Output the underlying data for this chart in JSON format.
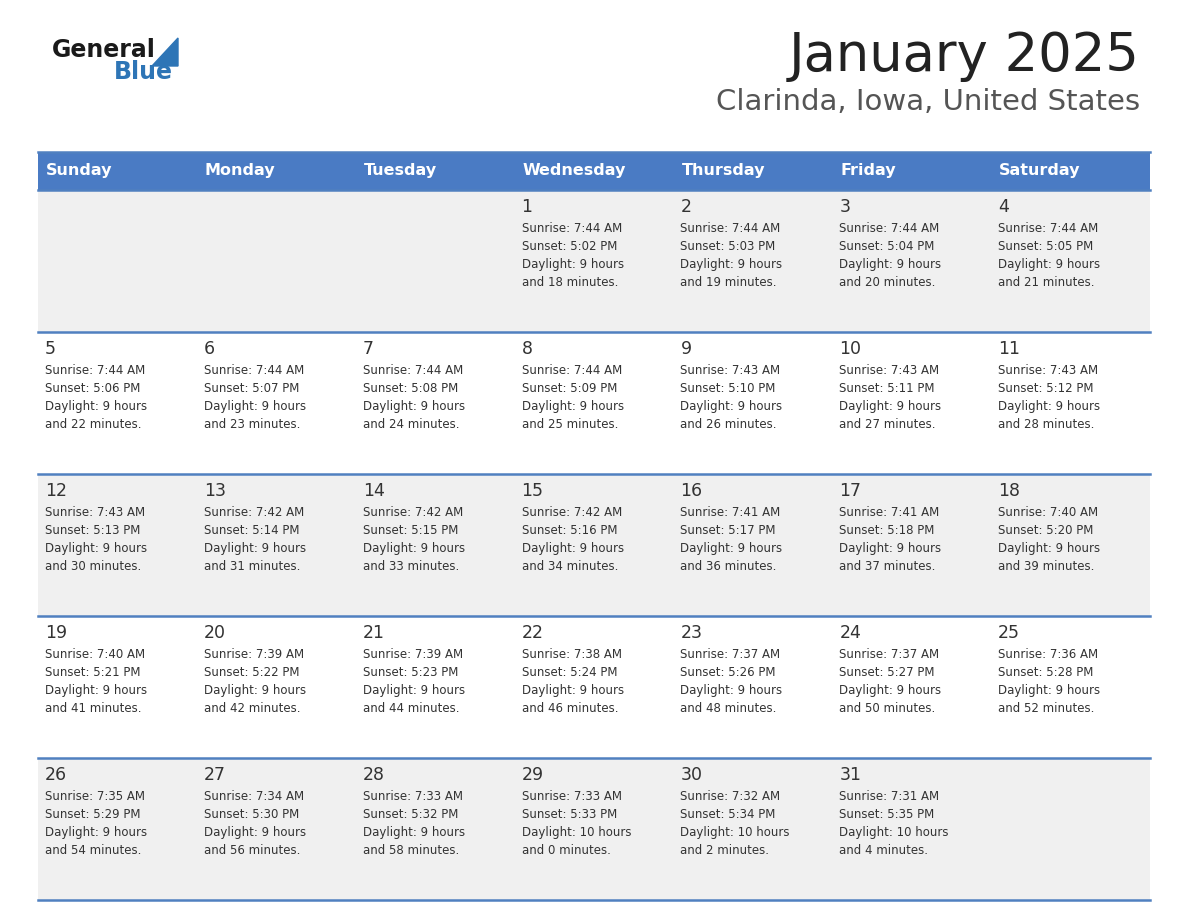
{
  "title": "January 2025",
  "subtitle": "Clarinda, Iowa, United States",
  "days_of_week": [
    "Sunday",
    "Monday",
    "Tuesday",
    "Wednesday",
    "Thursday",
    "Friday",
    "Saturday"
  ],
  "header_bg": "#4A7BC4",
  "header_text": "#FFFFFF",
  "row_bg_odd": "#FFFFFF",
  "row_bg_even": "#F0F0F0",
  "cell_text": "#333333",
  "border_color": "#5080C0",
  "title_color": "#222222",
  "subtitle_color": "#555555",
  "logo_general_color": "#1a1a1a",
  "logo_blue_color": "#2E75B6",
  "weeks": [
    {
      "days": [
        {
          "day": null,
          "sunrise": null,
          "sunset": null,
          "daylight": null
        },
        {
          "day": null,
          "sunrise": null,
          "sunset": null,
          "daylight": null
        },
        {
          "day": null,
          "sunrise": null,
          "sunset": null,
          "daylight": null
        },
        {
          "day": 1,
          "sunrise": "7:44 AM",
          "sunset": "5:02 PM",
          "daylight": "9 hours\nand 18 minutes."
        },
        {
          "day": 2,
          "sunrise": "7:44 AM",
          "sunset": "5:03 PM",
          "daylight": "9 hours\nand 19 minutes."
        },
        {
          "day": 3,
          "sunrise": "7:44 AM",
          "sunset": "5:04 PM",
          "daylight": "9 hours\nand 20 minutes."
        },
        {
          "day": 4,
          "sunrise": "7:44 AM",
          "sunset": "5:05 PM",
          "daylight": "9 hours\nand 21 minutes."
        }
      ]
    },
    {
      "days": [
        {
          "day": 5,
          "sunrise": "7:44 AM",
          "sunset": "5:06 PM",
          "daylight": "9 hours\nand 22 minutes."
        },
        {
          "day": 6,
          "sunrise": "7:44 AM",
          "sunset": "5:07 PM",
          "daylight": "9 hours\nand 23 minutes."
        },
        {
          "day": 7,
          "sunrise": "7:44 AM",
          "sunset": "5:08 PM",
          "daylight": "9 hours\nand 24 minutes."
        },
        {
          "day": 8,
          "sunrise": "7:44 AM",
          "sunset": "5:09 PM",
          "daylight": "9 hours\nand 25 minutes."
        },
        {
          "day": 9,
          "sunrise": "7:43 AM",
          "sunset": "5:10 PM",
          "daylight": "9 hours\nand 26 minutes."
        },
        {
          "day": 10,
          "sunrise": "7:43 AM",
          "sunset": "5:11 PM",
          "daylight": "9 hours\nand 27 minutes."
        },
        {
          "day": 11,
          "sunrise": "7:43 AM",
          "sunset": "5:12 PM",
          "daylight": "9 hours\nand 28 minutes."
        }
      ]
    },
    {
      "days": [
        {
          "day": 12,
          "sunrise": "7:43 AM",
          "sunset": "5:13 PM",
          "daylight": "9 hours\nand 30 minutes."
        },
        {
          "day": 13,
          "sunrise": "7:42 AM",
          "sunset": "5:14 PM",
          "daylight": "9 hours\nand 31 minutes."
        },
        {
          "day": 14,
          "sunrise": "7:42 AM",
          "sunset": "5:15 PM",
          "daylight": "9 hours\nand 33 minutes."
        },
        {
          "day": 15,
          "sunrise": "7:42 AM",
          "sunset": "5:16 PM",
          "daylight": "9 hours\nand 34 minutes."
        },
        {
          "day": 16,
          "sunrise": "7:41 AM",
          "sunset": "5:17 PM",
          "daylight": "9 hours\nand 36 minutes."
        },
        {
          "day": 17,
          "sunrise": "7:41 AM",
          "sunset": "5:18 PM",
          "daylight": "9 hours\nand 37 minutes."
        },
        {
          "day": 18,
          "sunrise": "7:40 AM",
          "sunset": "5:20 PM",
          "daylight": "9 hours\nand 39 minutes."
        }
      ]
    },
    {
      "days": [
        {
          "day": 19,
          "sunrise": "7:40 AM",
          "sunset": "5:21 PM",
          "daylight": "9 hours\nand 41 minutes."
        },
        {
          "day": 20,
          "sunrise": "7:39 AM",
          "sunset": "5:22 PM",
          "daylight": "9 hours\nand 42 minutes."
        },
        {
          "day": 21,
          "sunrise": "7:39 AM",
          "sunset": "5:23 PM",
          "daylight": "9 hours\nand 44 minutes."
        },
        {
          "day": 22,
          "sunrise": "7:38 AM",
          "sunset": "5:24 PM",
          "daylight": "9 hours\nand 46 minutes."
        },
        {
          "day": 23,
          "sunrise": "7:37 AM",
          "sunset": "5:26 PM",
          "daylight": "9 hours\nand 48 minutes."
        },
        {
          "day": 24,
          "sunrise": "7:37 AM",
          "sunset": "5:27 PM",
          "daylight": "9 hours\nand 50 minutes."
        },
        {
          "day": 25,
          "sunrise": "7:36 AM",
          "sunset": "5:28 PM",
          "daylight": "9 hours\nand 52 minutes."
        }
      ]
    },
    {
      "days": [
        {
          "day": 26,
          "sunrise": "7:35 AM",
          "sunset": "5:29 PM",
          "daylight": "9 hours\nand 54 minutes."
        },
        {
          "day": 27,
          "sunrise": "7:34 AM",
          "sunset": "5:30 PM",
          "daylight": "9 hours\nand 56 minutes."
        },
        {
          "day": 28,
          "sunrise": "7:33 AM",
          "sunset": "5:32 PM",
          "daylight": "9 hours\nand 58 minutes."
        },
        {
          "day": 29,
          "sunrise": "7:33 AM",
          "sunset": "5:33 PM",
          "daylight": "10 hours\nand 0 minutes."
        },
        {
          "day": 30,
          "sunrise": "7:32 AM",
          "sunset": "5:34 PM",
          "daylight": "10 hours\nand 2 minutes."
        },
        {
          "day": 31,
          "sunrise": "7:31 AM",
          "sunset": "5:35 PM",
          "daylight": "10 hours\nand 4 minutes."
        },
        {
          "day": null,
          "sunrise": null,
          "sunset": null,
          "daylight": null
        }
      ]
    }
  ]
}
